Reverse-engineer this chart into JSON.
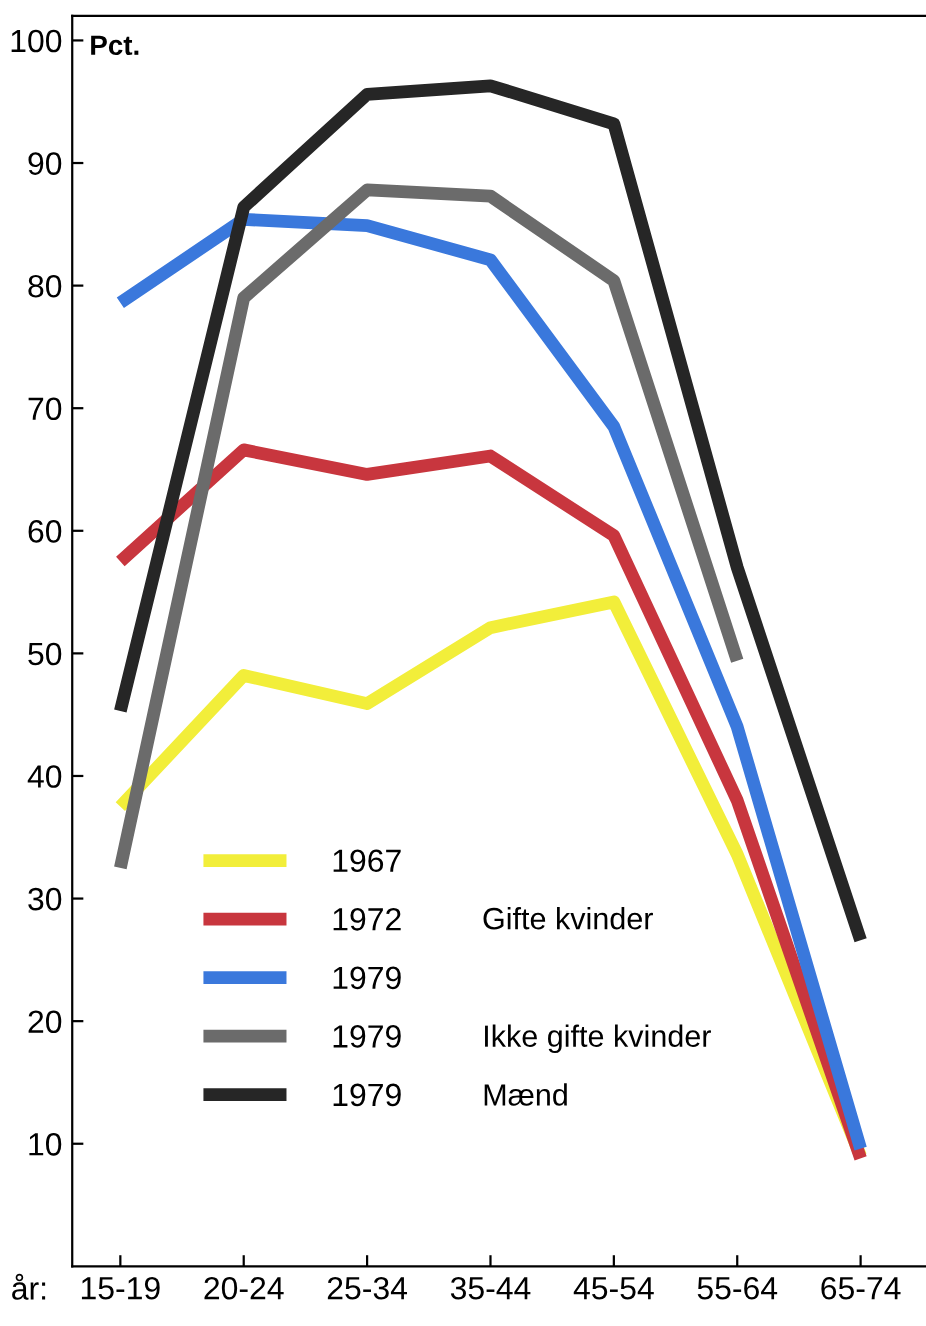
{
  "chart_data": {
    "type": "line",
    "ylabel": "Pct.",
    "xlabel": "år:",
    "categories": [
      "15-19",
      "20-24",
      "25-34",
      "35-44",
      "45-54",
      "55-64",
      "65-74"
    ],
    "series": [
      {
        "name": "1967",
        "color": "#f2ee3a",
        "values": [
          37.5,
          48.2,
          45.9,
          52.1,
          54.2,
          33.6,
          9
        ]
      },
      {
        "name": "1972",
        "color": "#c8363e",
        "values": [
          57.5,
          66.6,
          64.6,
          66.1,
          59.6,
          38,
          8.8
        ]
      },
      {
        "name": "1979",
        "color": "#3a78dc",
        "values": [
          78.6,
          85.4,
          84.9,
          82.1,
          68.5,
          44,
          9.6
        ]
      },
      {
        "name": "1979",
        "color": "#6b6b6b",
        "values": [
          32.5,
          79,
          87.8,
          87.3,
          80.4,
          49.4,
          null
        ]
      },
      {
        "name": "1979",
        "color": "#262626",
        "values": [
          45.3,
          86.4,
          95.6,
          96.3,
          93.2,
          57,
          26.6
        ]
      }
    ],
    "ylim": [
      0,
      102
    ],
    "yticks": [
      10,
      20,
      30,
      40,
      50,
      60,
      70,
      80,
      90,
      100
    ],
    "annotations": [
      "Gifte kvinder",
      "Ikke gifte kvinder",
      "Mænd"
    ],
    "grid": false,
    "legend": "bottom left",
    "marker": "none",
    "line_style": "solid"
  }
}
